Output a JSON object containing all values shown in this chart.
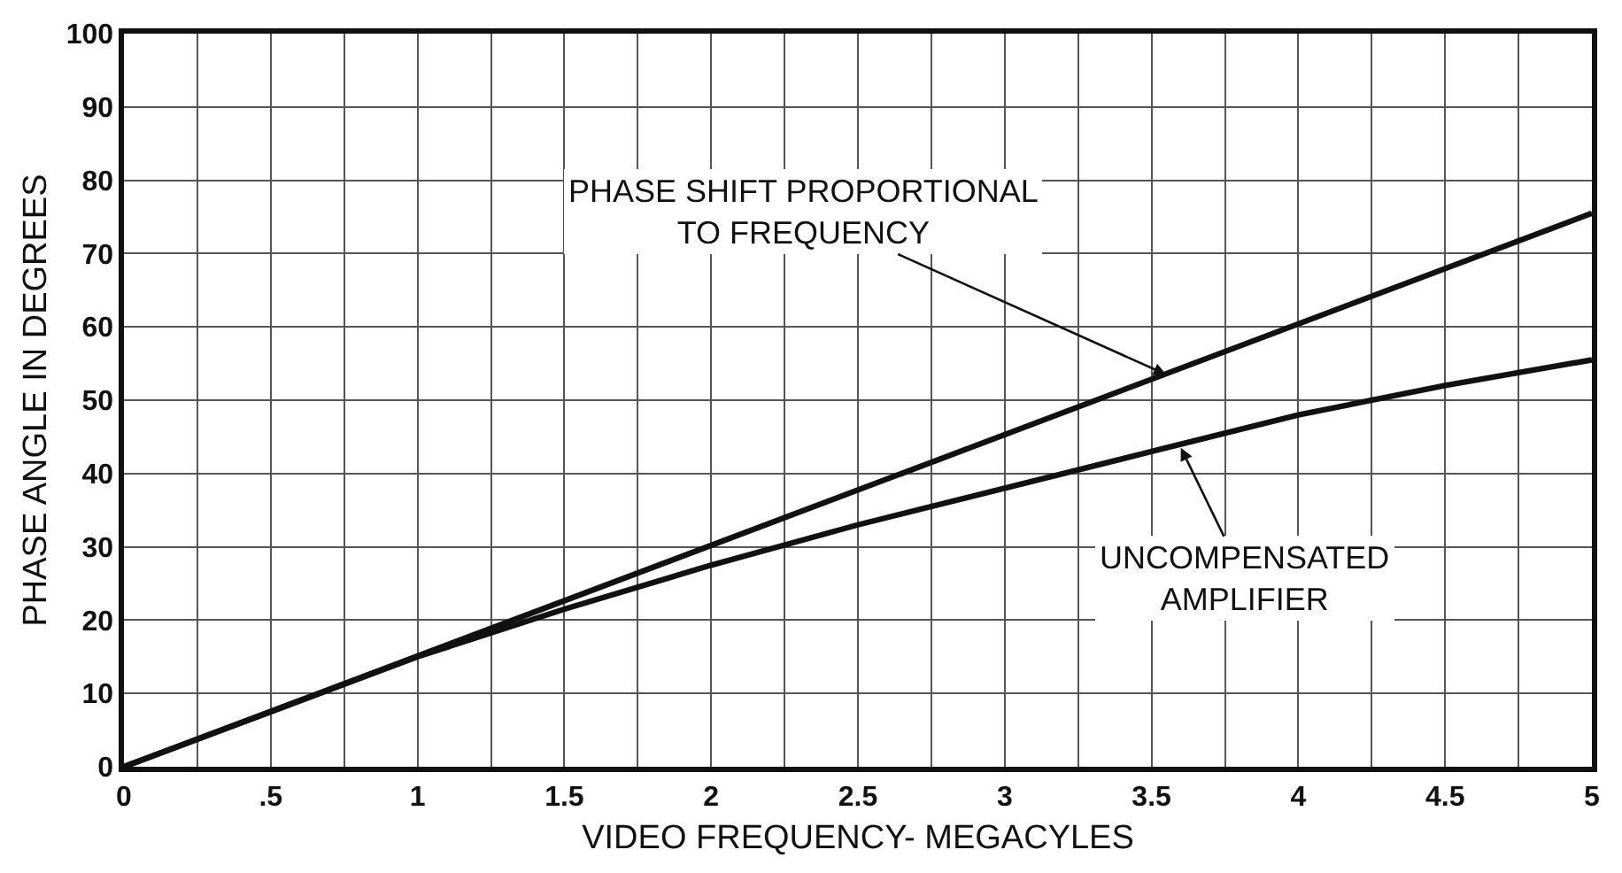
{
  "chart_data": {
    "type": "line",
    "xlabel": "VIDEO FREQUENCY- MEGACYLES",
    "ylabel": "PHASE ANGLE IN DEGREES",
    "xlim": [
      0,
      5
    ],
    "ylim": [
      0,
      100
    ],
    "xticks": [
      0,
      {
        "value": 0.25,
        "label": null
      },
      {
        "value": 0.5,
        "label": ".5"
      },
      {
        "value": 0.75,
        "label": null
      },
      1,
      {
        "value": 1.25,
        "label": null
      },
      1.5,
      {
        "value": 1.75,
        "label": null
      },
      2,
      {
        "value": 2.25,
        "label": null
      },
      2.5,
      {
        "value": 2.75,
        "label": null
      },
      3,
      {
        "value": 3.25,
        "label": null
      },
      3.5,
      {
        "value": 3.75,
        "label": null
      },
      4,
      {
        "value": 4.25,
        "label": null
      },
      4.5,
      {
        "value": 4.75,
        "label": null
      },
      5
    ],
    "yticks": [
      0,
      10,
      20,
      30,
      40,
      50,
      60,
      70,
      80,
      90,
      100
    ],
    "grid": true,
    "line_style": "solid",
    "series": [
      {
        "color": "#111111",
        "x": [
          0,
          5
        ],
        "values": [
          0,
          75.5
        ]
      },
      {
        "color": "#111111",
        "x": [
          0,
          0.5,
          1,
          1.5,
          2,
          2.5,
          3,
          3.5,
          4,
          4.5,
          5
        ],
        "values": [
          0,
          7.5,
          15,
          21.5,
          27.5,
          33,
          38,
          43,
          48,
          52,
          55.5
        ]
      }
    ],
    "annotations": [
      {
        "text": "PHASE SHIFT PROPORTIONAL\nTO FREQUENCY",
        "x": 3.55,
        "y": 53.5
      },
      {
        "text": "UNCOMPENSATED\nAMPLIFIER",
        "x": 3.6,
        "y": 43.5
      }
    ]
  }
}
